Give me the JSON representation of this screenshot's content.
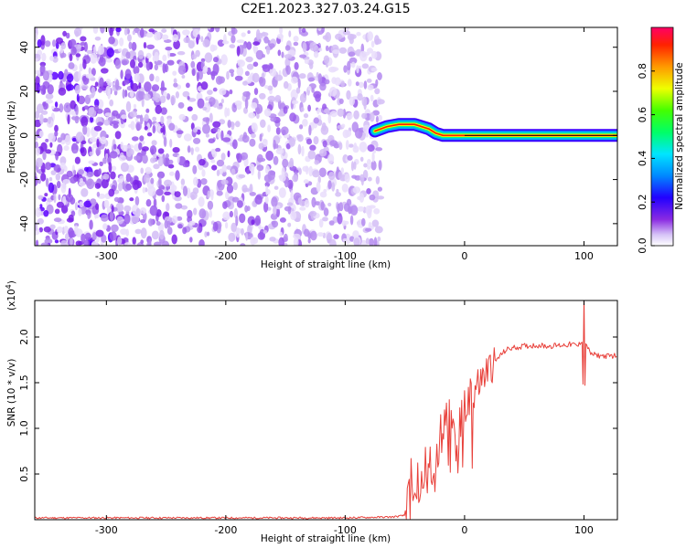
{
  "title": "C2E1.2023.327.03.24.G15",
  "chart_data": [
    {
      "type": "heatmap",
      "xlabel": "Height of straight line (km)",
      "ylabel": "Frequency (Hz)",
      "xlim": [
        -360,
        128
      ],
      "ylim": [
        -50,
        49
      ],
      "xticks": [
        "-300",
        "-200",
        "-100",
        "0",
        "100"
      ],
      "yticks": [
        "-40",
        "-20",
        "0",
        "20",
        "40"
      ],
      "noise_region_x": [
        -360,
        -70
      ],
      "signal_trace": {
        "x": [
          -75,
          -65,
          -55,
          -48,
          -42,
          -36,
          -30,
          -24,
          -18,
          -12,
          -6,
          0,
          20,
          40,
          60,
          80,
          95,
          110,
          128
        ],
        "freq": [
          2,
          4,
          5,
          5,
          5,
          4,
          3,
          1,
          0,
          0,
          0,
          0,
          0,
          0,
          0,
          0,
          0,
          0,
          0
        ]
      },
      "colorbar": {
        "label": "Normalized spectral amplitude",
        "ticks": [
          "0.0",
          "0.2",
          "0.4",
          "0.6",
          "0.8"
        ],
        "range": [
          0,
          1
        ]
      }
    },
    {
      "type": "line",
      "xlabel": "Height of straight line (km)",
      "ylabel": "SNR (10 * v/v)",
      "multiplier": "(x10",
      "multiplier_exp": "4",
      "multiplier_close": ")",
      "xlim": [
        -360,
        128
      ],
      "ylim": [
        0,
        2.4
      ],
      "xticks": [
        "-300",
        "-200",
        "-100",
        "0",
        "100"
      ],
      "yticks": [
        "0.5",
        "1.0",
        "1.5",
        "2.0"
      ],
      "color": "#e8403a",
      "series": [
        {
          "x": [
            -360,
            -300,
            -200,
            -100,
            -60,
            -48,
            -44,
            -40,
            -35,
            -30,
            -25,
            -20,
            -15,
            -10,
            -5,
            0,
            5,
            10,
            15,
            20,
            25,
            30,
            35,
            40,
            50,
            60,
            70,
            80,
            90,
            95,
            100,
            105,
            110,
            120,
            128
          ],
          "values": [
            0.02,
            0.02,
            0.02,
            0.02,
            0.03,
            0.05,
            0.5,
            0.35,
            0.6,
            0.5,
            0.75,
            0.9,
            1.0,
            1.05,
            1.1,
            1.2,
            1.3,
            1.45,
            1.55,
            1.65,
            1.72,
            1.8,
            1.86,
            1.88,
            1.9,
            1.91,
            1.9,
            1.91,
            1.92,
            1.9,
            2.0,
            1.82,
            1.8,
            1.79,
            1.8
          ]
        }
      ]
    }
  ]
}
